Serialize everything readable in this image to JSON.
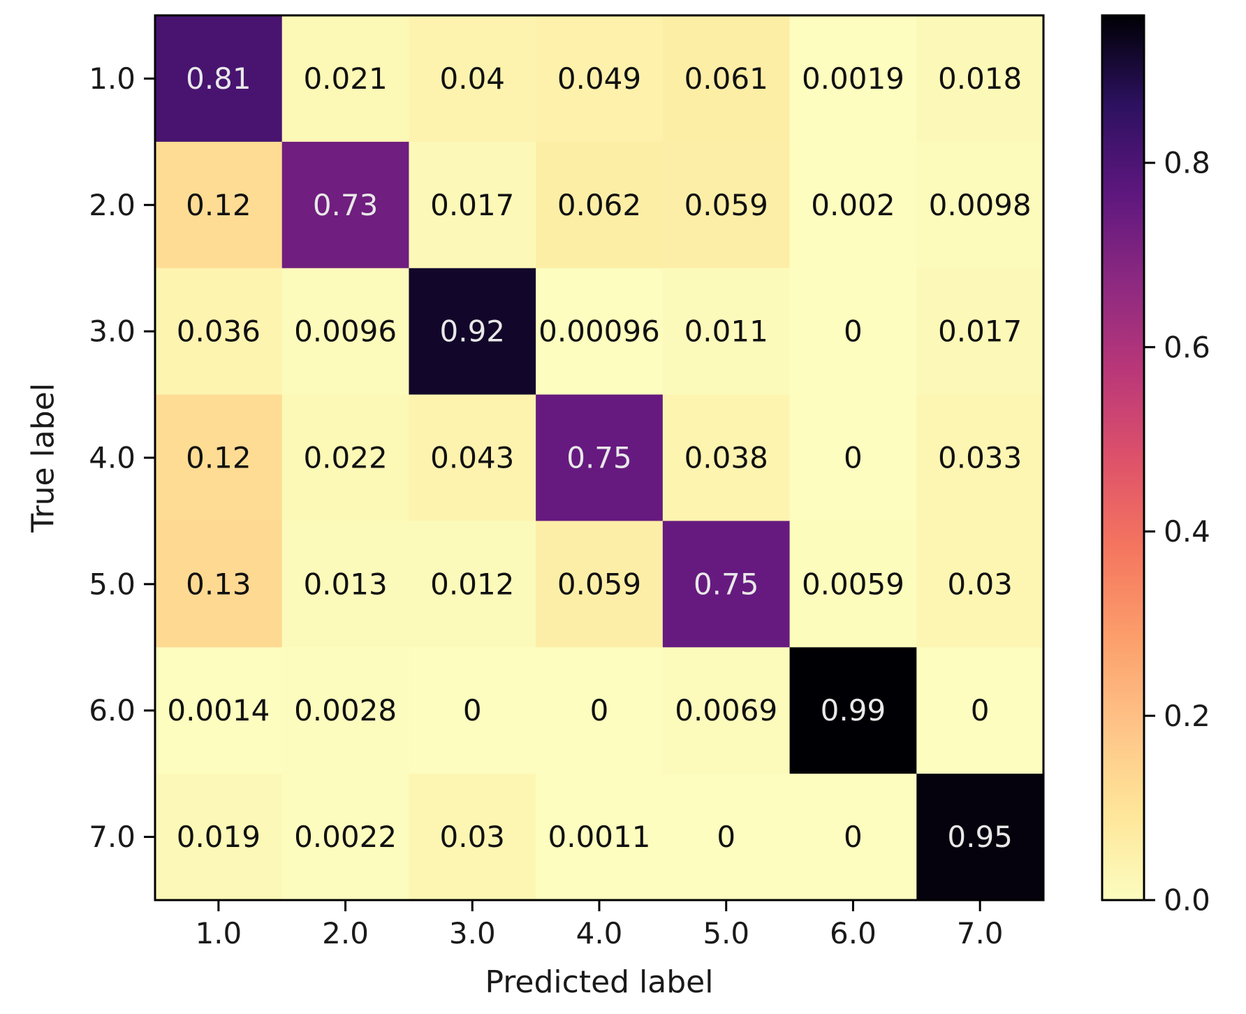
{
  "chart_data": {
    "type": "heatmap",
    "title": "",
    "xlabel": "Predicted label",
    "ylabel": "True label",
    "x_categories": [
      "1.0",
      "2.0",
      "3.0",
      "4.0",
      "5.0",
      "6.0",
      "7.0"
    ],
    "y_categories": [
      "1.0",
      "2.0",
      "3.0",
      "4.0",
      "5.0",
      "6.0",
      "7.0"
    ],
    "values": [
      [
        0.81,
        0.021,
        0.04,
        0.049,
        0.061,
        0.0019,
        0.018
      ],
      [
        0.12,
        0.73,
        0.017,
        0.062,
        0.059,
        0.002,
        0.0098
      ],
      [
        0.036,
        0.0096,
        0.92,
        0.00096,
        0.011,
        0,
        0.017
      ],
      [
        0.12,
        0.022,
        0.043,
        0.75,
        0.038,
        0,
        0.033
      ],
      [
        0.13,
        0.013,
        0.012,
        0.059,
        0.75,
        0.0059,
        0.03
      ],
      [
        0.0014,
        0.0028,
        0,
        0,
        0.0069,
        0.99,
        0
      ],
      [
        0.019,
        0.0022,
        0.03,
        0.0011,
        0,
        0,
        0.95
      ]
    ],
    "cell_labels": [
      [
        "0.81",
        "0.021",
        "0.04",
        "0.049",
        "0.061",
        "0.0019",
        "0.018"
      ],
      [
        "0.12",
        "0.73",
        "0.017",
        "0.062",
        "0.059",
        "0.002",
        "0.0098"
      ],
      [
        "0.036",
        "0.0096",
        "0.92",
        "0.00096",
        "0.011",
        "0",
        "0.017"
      ],
      [
        "0.12",
        "0.022",
        "0.043",
        "0.75",
        "0.038",
        "0",
        "0.033"
      ],
      [
        "0.13",
        "0.013",
        "0.012",
        "0.059",
        "0.75",
        "0.0059",
        "0.03"
      ],
      [
        "0.0014",
        "0.0028",
        "0",
        "0",
        "0.0069",
        "0.99",
        "0"
      ],
      [
        "0.019",
        "0.0022",
        "0.03",
        "0.0011",
        "0",
        "0",
        "0.95"
      ]
    ],
    "colormap": "magma_r",
    "colorbar": {
      "range": [
        0.0,
        0.96
      ],
      "ticks": [
        0.0,
        0.2,
        0.4,
        0.6,
        0.8
      ],
      "tick_labels": [
        "0.0",
        "0.2",
        "0.4",
        "0.6",
        "0.8"
      ]
    }
  }
}
